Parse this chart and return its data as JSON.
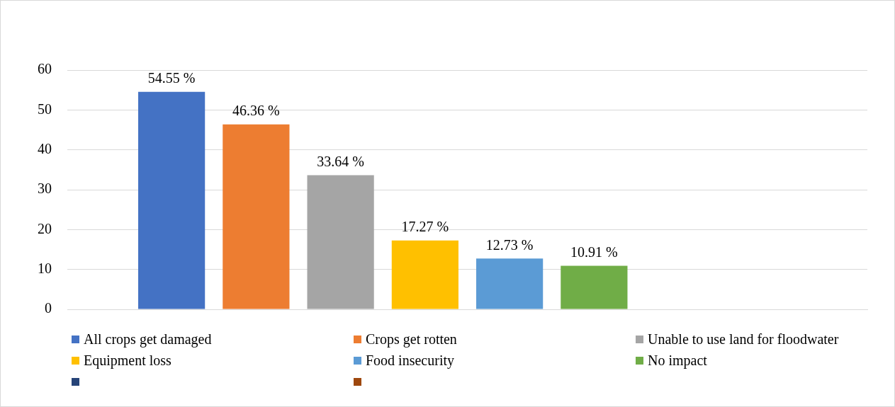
{
  "chart_data": {
    "type": "bar",
    "categories": [
      null
    ],
    "series": [
      {
        "name": "All crops get damaged",
        "color": "#4472c4",
        "values": [
          54.55
        ],
        "value_labels": [
          "54.55 %"
        ]
      },
      {
        "name": "Crops get rotten",
        "color": "#ed7d31",
        "values": [
          46.36
        ],
        "value_labels": [
          "46.36 %"
        ]
      },
      {
        "name": "Unable to use land for floodwater",
        "color": "#a5a5a5",
        "values": [
          33.64
        ],
        "value_labels": [
          "33.64 %"
        ]
      },
      {
        "name": "Equipment loss",
        "color": "#ffc000",
        "values": [
          17.27
        ],
        "value_labels": [
          "17.27 %"
        ]
      },
      {
        "name": "Food insecurity",
        "color": "#5b9bd5",
        "values": [
          12.73
        ],
        "value_labels": [
          "12.73 %"
        ]
      },
      {
        "name": "No impact",
        "color": "#70ad47",
        "values": [
          10.91
        ],
        "value_labels": [
          "10.91 %"
        ]
      },
      {
        "color": "#264478",
        "values": [
          null
        ]
      },
      {
        "color": "#9e480e",
        "values": [
          null
        ]
      }
    ],
    "ylim": [
      0,
      60
    ],
    "yticks": [
      0,
      10,
      20,
      30,
      40,
      50,
      60
    ],
    "grid": "y",
    "legend": "bottom",
    "tick_labels": "y"
  }
}
